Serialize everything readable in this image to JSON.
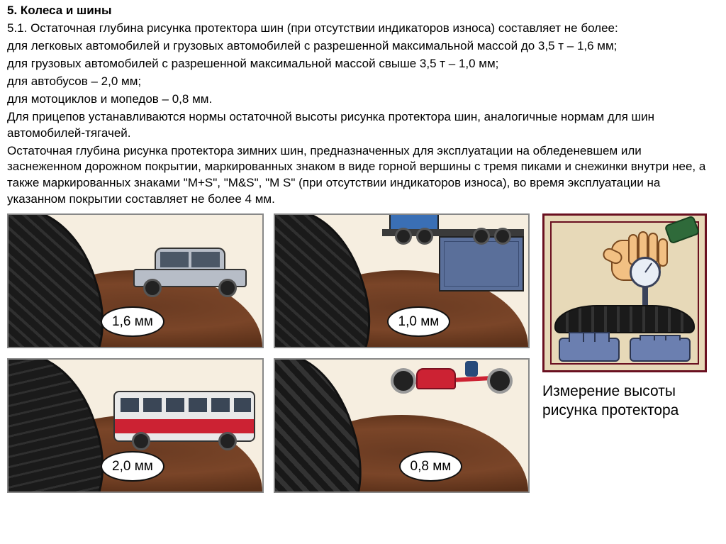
{
  "title": "5. Колеса и шины",
  "p1": "5.1. Остаточная глубина рисунка протектора шин (при отсутствии индикаторов износа) составляет не более:",
  "p2": "для легковых автомобилей и грузовых автомобилей с разрешенной максимальной массой до 3,5 т – 1,6 мм;",
  "p3": "для грузовых автомобилей с разрешенной максимальной массой свыше 3,5 т – 1,0 мм;",
  "p4": "для автобусов – 2,0 мм;",
  "p5": "для мотоциклов и мопедов – 0,8 мм.",
  "p6": "Для прицепов устанавливаются нормы остаточной высоты рисунка протектора шин, аналогичные нормам для шин автомобилей-тягачей.",
  "p7": "Остаточная глубина рисунка протектора зимних шин, предназначенных для эксплуатации на обледеневшем или заснеженном дорожном покрытии, маркированных знаком в виде горной вершины с тремя пиками и снежинки внутри нее, а также маркированных знаками \"M+S\", \"M&S\", \"M S\" (при отсутствии индикаторов износа), во время эксплуатации на указанном покрытии составляет не более 4 мм.",
  "panels": {
    "car": {
      "badge": "1,6 мм"
    },
    "truck": {
      "badge": "1,0 мм"
    },
    "bus": {
      "badge": "2,0 мм"
    },
    "moto": {
      "badge": "0,8 мм"
    }
  },
  "gauge_caption": "Измерение высоты рисунка протектора",
  "colors": {
    "panel_border": "#888888",
    "panel_bg": "#f6eee0",
    "ground": "#6a3b22",
    "tire_dark": "#1a1a1a",
    "badge_bg": "#ffffff",
    "badge_border": "#111111",
    "truck_trailer": "#5a6f9a",
    "truck_cab": "#3a6fb5",
    "bus_body": "#e9e9e9",
    "bus_stripe": "#cc2233",
    "moto_red": "#cc2233",
    "rider_helmet": "#1f8a5c",
    "rider_jacket": "#274a7a",
    "gauge_border": "#6a1020",
    "gauge_bg": "#e7d9b8",
    "hand_skin": "#f2c083",
    "profile_fill": "#6b7fb0"
  },
  "fonts": {
    "body_pt": 13,
    "badge_pt": 14,
    "caption_pt": 16
  }
}
